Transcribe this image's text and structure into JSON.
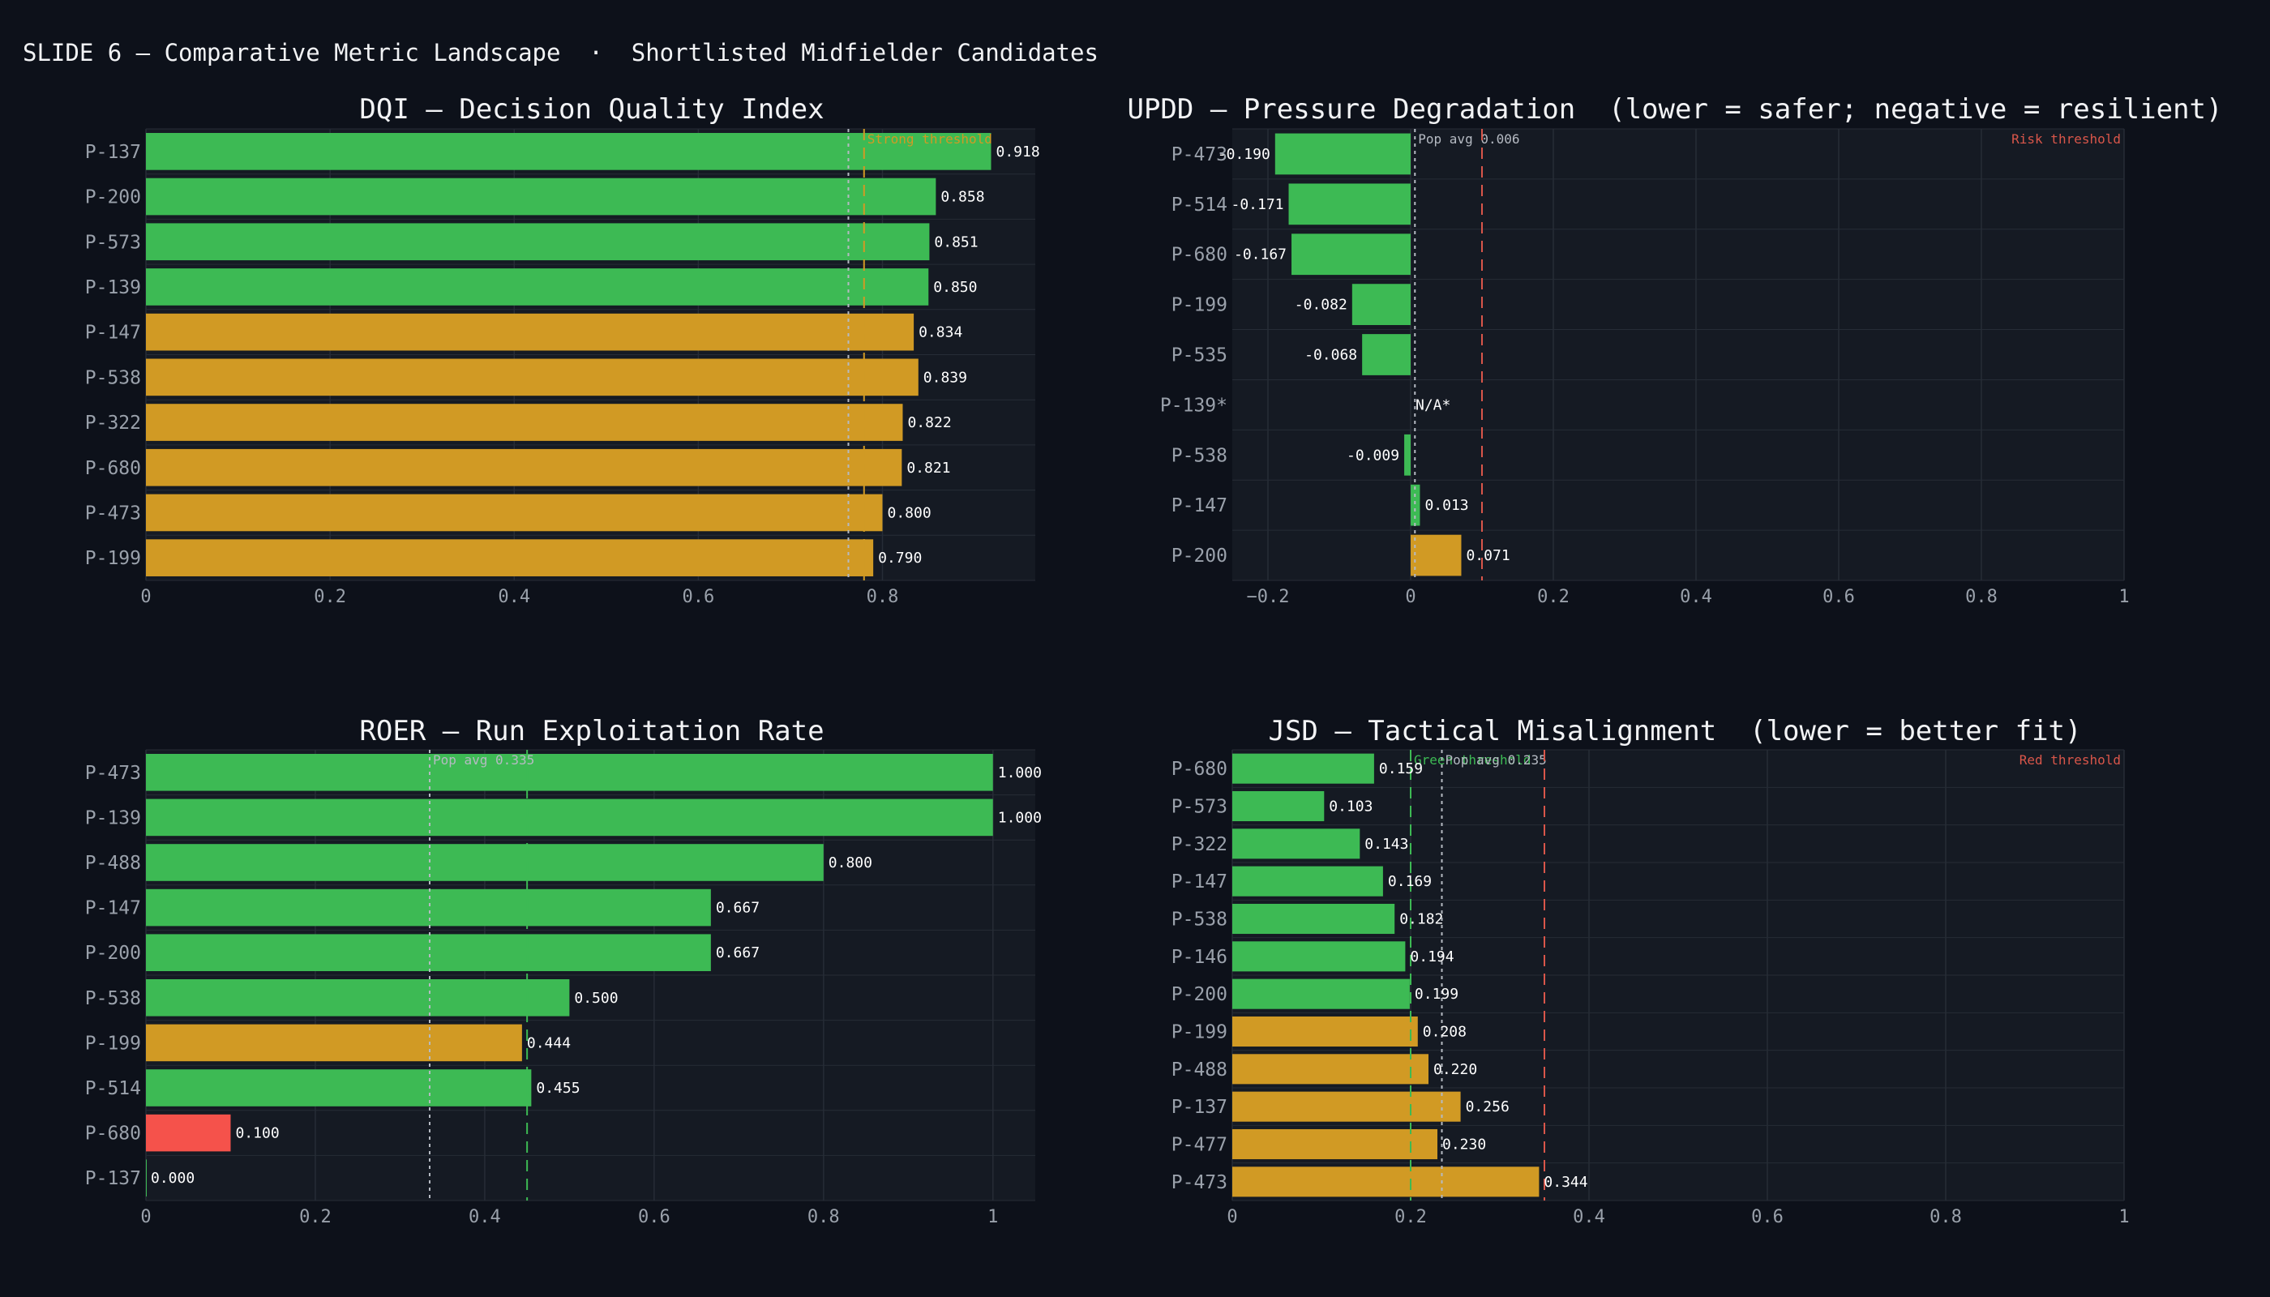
{
  "slide_title": "SLIDE 6 — Comparative Metric Landscape  ·  Shortlisted Midfielder Candidates",
  "colors": {
    "background": "#0d111a",
    "plot_bg": "#151a23",
    "grid": "#262c36",
    "green": "#3dba54",
    "amber": "#d19a24",
    "red": "#f5524b",
    "text": "#e6e8ec",
    "tick": "#9aa1ab",
    "pop_line": "#b5bac2",
    "risk_line": "#d9564a",
    "green_line": "#3dba54",
    "amber_line": "#d19a24"
  },
  "chart_data": [
    {
      "id": "dqi",
      "type": "bar",
      "orientation": "horizontal",
      "title": "DQI — Decision Quality Index",
      "categories": [
        "P-137",
        "P-200",
        "P-573",
        "P-139",
        "P-147",
        "P-538",
        "P-322",
        "P-680",
        "P-473",
        "P-199"
      ],
      "values": [
        0.918,
        0.858,
        0.851,
        0.85,
        0.834,
        0.839,
        0.822,
        0.821,
        0.8,
        0.79
      ],
      "value_labels": [
        "0.918",
        "0.858",
        "0.851",
        "0.850",
        "0.834",
        "0.839",
        "0.822",
        "0.821",
        "0.800",
        "0.790"
      ],
      "bar_colors": [
        "green",
        "green",
        "green",
        "green",
        "amber",
        "amber",
        "amber",
        "amber",
        "amber",
        "amber"
      ],
      "xlim": [
        0,
        0.966
      ],
      "xticks": [
        0,
        0.2,
        0.4,
        0.6,
        0.8
      ],
      "xtick_labels": [
        "0",
        "0.2",
        "0.4",
        "0.6",
        "0.8"
      ],
      "reference_lines": [
        {
          "value": 0.763,
          "style": "pop",
          "label": ""
        },
        {
          "value": 0.78,
          "style": "amber",
          "label": "Strong threshold"
        }
      ]
    },
    {
      "id": "updd",
      "type": "bar",
      "orientation": "horizontal",
      "title": "UPDD — Pressure Degradation  (lower = safer; negative = resilient)",
      "categories": [
        "P-473",
        "P-514",
        "P-680",
        "P-199",
        "P-535",
        "P-139*",
        "P-538",
        "P-147",
        "P-200"
      ],
      "values": [
        -0.19,
        -0.171,
        -0.167,
        -0.082,
        -0.068,
        null,
        -0.009,
        0.013,
        0.071
      ],
      "value_labels": [
        "-0.190",
        "-0.171",
        "-0.167",
        "-0.082",
        "-0.068",
        "N/A*",
        "-0.009",
        "0.013",
        "0.071"
      ],
      "bar_colors": [
        "green",
        "green",
        "green",
        "green",
        "green",
        "none",
        "green",
        "green",
        "amber"
      ],
      "xlim": [
        -0.25,
        1.0
      ],
      "xticks": [
        -0.2,
        0,
        0.2,
        0.4,
        0.6,
        0.8,
        1
      ],
      "xtick_labels": [
        "−0.2",
        "0",
        "0.2",
        "0.4",
        "0.6",
        "0.8",
        "1"
      ],
      "reference_lines": [
        {
          "value": 0.006,
          "style": "pop",
          "label": "Pop avg 0.006"
        },
        {
          "value": 0.1,
          "style": "risk",
          "label": "Risk threshold"
        }
      ]
    },
    {
      "id": "roer",
      "type": "bar",
      "orientation": "horizontal",
      "title": "ROER — Run Exploitation Rate",
      "categories": [
        "P-473",
        "P-139",
        "P-488",
        "P-147",
        "P-200",
        "P-538",
        "P-199",
        "P-514",
        "P-680",
        "P-137"
      ],
      "values": [
        1.0,
        1.0,
        0.8,
        0.667,
        0.667,
        0.5,
        0.444,
        0.455,
        0.1,
        0.0
      ],
      "value_labels": [
        "1.000",
        "1.000",
        "0.800",
        "0.667",
        "0.667",
        "0.500",
        "0.444",
        "0.455",
        "0.100",
        "0.000"
      ],
      "bar_colors": [
        "green",
        "green",
        "green",
        "green",
        "green",
        "green",
        "amber",
        "green",
        "red",
        "green"
      ],
      "xlim": [
        0,
        1.05
      ],
      "xticks": [
        0,
        0.2,
        0.4,
        0.6,
        0.8,
        1
      ],
      "xtick_labels": [
        "0",
        "0.2",
        "0.4",
        "0.6",
        "0.8",
        "1"
      ],
      "reference_lines": [
        {
          "value": 0.335,
          "style": "pop",
          "label": "Pop avg 0.335"
        },
        {
          "value": 0.45,
          "style": "green",
          "label": ""
        }
      ]
    },
    {
      "id": "jsd",
      "type": "bar",
      "orientation": "horizontal",
      "title": "JSD — Tactical Misalignment  (lower = better fit)",
      "categories": [
        "P-680",
        "P-573",
        "P-322",
        "P-147",
        "P-538",
        "P-146",
        "P-200",
        "P-199",
        "P-488",
        "P-137",
        "P-477",
        "P-473"
      ],
      "values": [
        0.159,
        0.103,
        0.143,
        0.169,
        0.182,
        0.194,
        0.199,
        0.208,
        0.22,
        0.256,
        0.23,
        0.344
      ],
      "value_labels": [
        "0.159",
        "0.103",
        "0.143",
        "0.169",
        "0.182",
        "0.194",
        "0.199",
        "0.208",
        "0.220",
        "0.256",
        "0.230",
        "0.344"
      ],
      "bar_colors": [
        "green",
        "green",
        "green",
        "green",
        "green",
        "green",
        "green",
        "amber",
        "amber",
        "amber",
        "amber",
        "amber"
      ],
      "xlim": [
        0,
        1.0
      ],
      "xticks": [
        0,
        0.2,
        0.4,
        0.6,
        0.8,
        1
      ],
      "xtick_labels": [
        "0",
        "0.2",
        "0.4",
        "0.6",
        "0.8",
        "1"
      ],
      "reference_lines": [
        {
          "value": 0.2,
          "style": "green",
          "label": "Green threshold"
        },
        {
          "value": 0.235,
          "style": "pop",
          "label": "Pop avg 0.235"
        },
        {
          "value": 0.35,
          "style": "risk",
          "label": "Red threshold"
        }
      ]
    }
  ]
}
